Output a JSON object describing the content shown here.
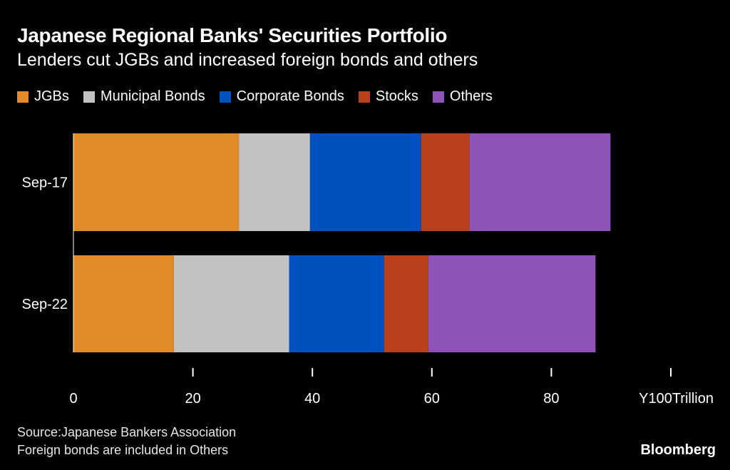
{
  "header": {
    "title": "Japanese Regional Banks' Securities Portfolio",
    "subtitle": "Lenders cut JGBs and increased foreign bonds and others"
  },
  "footer": {
    "source": "Source:Japanese Bankers Association",
    "note": "Foreign bonds are included in Others",
    "brand": "Bloomberg"
  },
  "chart_data": {
    "type": "bar",
    "orientation": "horizontal",
    "stacked": true,
    "categories": [
      "Sep-17",
      "Sep-22"
    ],
    "series": [
      {
        "name": "JGBs",
        "color": "#e08b27",
        "values": [
          27.7,
          16.8
        ]
      },
      {
        "name": "Municipal Bonds",
        "color": "#c2c2c2",
        "values": [
          11.9,
          19.3
        ]
      },
      {
        "name": "Corporate Bonds",
        "color": "#0051bf",
        "values": [
          18.6,
          15.9
        ]
      },
      {
        "name": "Stocks",
        "color": "#b8411c",
        "values": [
          8.1,
          7.4
        ]
      },
      {
        "name": "Others",
        "color": "#8e53b9",
        "values": [
          23.6,
          28.0
        ]
      }
    ],
    "xlim": [
      0,
      100
    ],
    "xticks": [
      0,
      20,
      40,
      60,
      80,
      100
    ],
    "xtick_labels": [
      "0",
      "20",
      "40",
      "60",
      "80",
      "Y100Trillion"
    ],
    "grid": false,
    "legend_position": "top-left"
  }
}
